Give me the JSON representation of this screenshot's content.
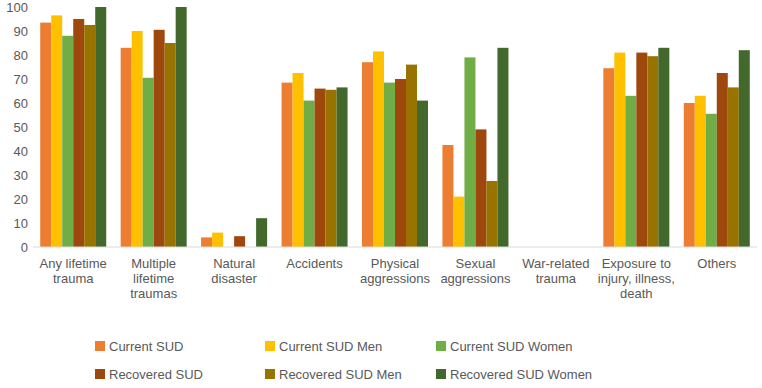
{
  "chart_data": {
    "type": "bar",
    "categories": [
      "Any lifetime trauma",
      "Multiple lifetime traumas",
      "Natural disaster",
      "Accidents",
      "Physical aggressions",
      "Sexual aggressions",
      "War-related trauma",
      "Exposure to injury, illness, death",
      "Others"
    ],
    "series": [
      {
        "name": "Current SUD",
        "color": "#ed7d31",
        "values": [
          93.5,
          83,
          4,
          68.5,
          77,
          42.5,
          0,
          74.5,
          60
        ]
      },
      {
        "name": "Current SUD Men",
        "color": "#ffc000",
        "values": [
          96.5,
          90,
          6,
          72.5,
          81.5,
          21,
          0,
          81,
          63
        ]
      },
      {
        "name": "Current SUD Women",
        "color": "#70ad47",
        "values": [
          88,
          70.5,
          0,
          61,
          68.5,
          79,
          0,
          63,
          55.5
        ]
      },
      {
        "name": "Recovered SUD",
        "color": "#9e480e",
        "values": [
          95,
          90.5,
          4.5,
          66,
          70,
          49,
          0,
          81,
          72.5
        ]
      },
      {
        "name": "Recovered SUD Men",
        "color": "#997300",
        "values": [
          92.5,
          85,
          0,
          65.5,
          76,
          27.5,
          0,
          79.5,
          66.5
        ]
      },
      {
        "name": "Recovered SUD Women",
        "color": "#43682b",
        "values": [
          100,
          100,
          12,
          66.5,
          61,
          83,
          0,
          83,
          82
        ]
      }
    ],
    "ylim": [
      0,
      100
    ],
    "yticks": [
      0,
      10,
      20,
      30,
      40,
      50,
      60,
      70,
      80,
      90,
      100
    ],
    "grid": false,
    "legend": "bottom"
  }
}
